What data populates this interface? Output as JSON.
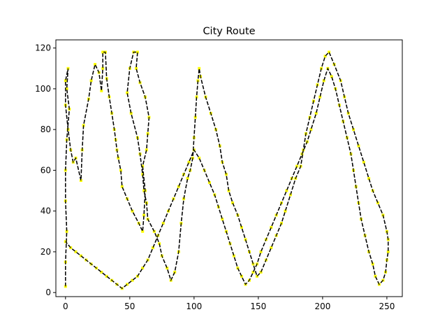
{
  "colors": {
    "route_line": "#000000",
    "city_marker": "#ffff00",
    "axes": "#000000",
    "background": "#ffffff"
  },
  "chart_data": {
    "type": "line",
    "title": "City Route",
    "xlabel": "",
    "ylabel": "",
    "xlim": [
      -7.5,
      262
    ],
    "ylim": [
      -2,
      124
    ],
    "x_ticks": [
      0,
      50,
      100,
      150,
      200,
      250
    ],
    "y_ticks": [
      0,
      20,
      40,
      60,
      80,
      100,
      120
    ],
    "grid": false,
    "legend": "none",
    "line_style": "dashed",
    "marker_style": "square",
    "series": [
      {
        "x": [
          0,
          0,
          1,
          0,
          0,
          1,
          3,
          1,
          2,
          0,
          0,
          2,
          4,
          6,
          8,
          12,
          13,
          14,
          18,
          20,
          23,
          26,
          28,
          29,
          29,
          31,
          32,
          34,
          36,
          38,
          39,
          40,
          41,
          43,
          44,
          48,
          52,
          57,
          60,
          61,
          62,
          60,
          63,
          64,
          65,
          62,
          58,
          55,
          56,
          53,
          50,
          48,
          51,
          56,
          58,
          60,
          61,
          63,
          64,
          69,
          73,
          75,
          79,
          82,
          85,
          88,
          90,
          92,
          95,
          97,
          99,
          100,
          101,
          102,
          103,
          104,
          105,
          109,
          113,
          117,
          120,
          122,
          125,
          127,
          130,
          134,
          137,
          140,
          143,
          146,
          149,
          152,
          156,
          160,
          164,
          168,
          171,
          175,
          179,
          183,
          185,
          187,
          190,
          193,
          196,
          199,
          202,
          205,
          209,
          214,
          217,
          220,
          224,
          228,
          232,
          236,
          239,
          243,
          247,
          250,
          251,
          251,
          250,
          249,
          247,
          244,
          241,
          239,
          236,
          233,
          230,
          228,
          226,
          224,
          222,
          219,
          216,
          213,
          210,
          207,
          204,
          201,
          198,
          195,
          191,
          188,
          184,
          180,
          176,
          172,
          168,
          164,
          160,
          156,
          152,
          149,
          146,
          143,
          140,
          137,
          134,
          131,
          128,
          125,
          122,
          119,
          116,
          112,
          108,
          104,
          100,
          96,
          92,
          88,
          84,
          80,
          76,
          72,
          68,
          64,
          60,
          56,
          52,
          48,
          44,
          40,
          36,
          32,
          28,
          24,
          20,
          16,
          12,
          8,
          4,
          0
        ],
        "y": [
          3,
          15,
          30,
          45,
          60,
          75,
          90,
          100,
          110,
          104,
          92,
          80,
          70,
          64,
          66,
          55,
          70,
          82,
          95,
          104,
          112,
          108,
          99,
          110,
          118,
          118,
          105,
          96,
          88,
          80,
          75,
          70,
          66,
          60,
          52,
          46,
          40,
          34,
          30,
          38,
          50,
          62,
          70,
          78,
          86,
          96,
          103,
          110,
          118,
          118,
          110,
          98,
          88,
          76,
          68,
          58,
          50,
          44,
          36,
          30,
          24,
          18,
          12,
          6,
          10,
          20,
          34,
          46,
          56,
          60,
          66,
          76,
          86,
          96,
          104,
          110,
          106,
          96,
          88,
          80,
          72,
          64,
          58,
          50,
          44,
          38,
          32,
          26,
          20,
          14,
          8,
          10,
          16,
          22,
          28,
          34,
          40,
          48,
          56,
          62,
          70,
          78,
          86,
          94,
          102,
          110,
          116,
          118,
          112,
          104,
          96,
          88,
          80,
          72,
          64,
          56,
          50,
          44,
          38,
          30,
          26,
          20,
          16,
          10,
          6,
          4,
          8,
          14,
          20,
          28,
          36,
          44,
          52,
          60,
          68,
          76,
          84,
          92,
          100,
          106,
          110,
          104,
          96,
          88,
          80,
          74,
          68,
          62,
          56,
          50,
          44,
          38,
          32,
          26,
          20,
          14,
          10,
          6,
          4,
          8,
          12,
          18,
          24,
          30,
          36,
          42,
          48,
          54,
          60,
          66,
          70,
          64,
          58,
          52,
          46,
          40,
          34,
          28,
          22,
          16,
          12,
          8,
          6,
          4,
          2,
          4,
          6,
          8,
          10,
          12,
          14,
          16,
          18,
          20,
          22,
          25
        ]
      }
    ]
  }
}
